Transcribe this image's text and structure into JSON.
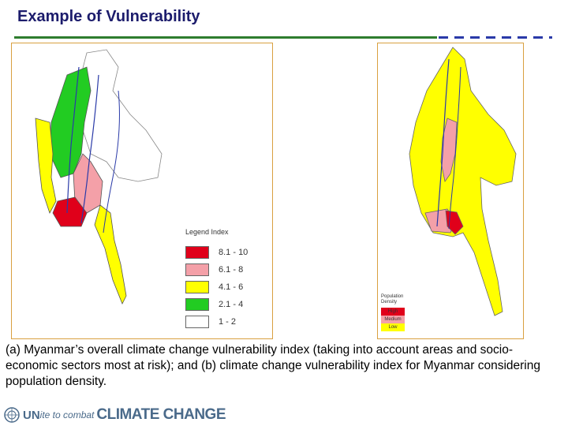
{
  "slide": {
    "title": "Example of Vulnerability",
    "caption": "(a) Myanmar’s overall climate change vulnerability index (taking into account areas and socio-economic sectors most at risk); and (b) climate change vulnerability index for Myanmar considering population density."
  },
  "map_a": {
    "legend_title": "Legend Index",
    "legend": [
      {
        "label": "8.1 - 10",
        "color": "#e0001a"
      },
      {
        "label": "6.1 - 8",
        "color": "#f4a0a8"
      },
      {
        "label": "4.1 - 6",
        "color": "#ffff00"
      },
      {
        "label": "2.1 - 4",
        "color": "#22cc22"
      },
      {
        "label": "1 - 2",
        "color": "#ffffff"
      }
    ]
  },
  "map_b": {
    "legend_title_1": "Population",
    "legend_title_2": "Density",
    "legend": [
      {
        "label": "High",
        "color": "#e0001a"
      },
      {
        "label": "Medium",
        "color": "#f4a0a8"
      },
      {
        "label": "Low",
        "color": "#ffff00"
      }
    ]
  },
  "footer": {
    "icon": "un-emblem-icon",
    "un": "UN",
    "ite": "ite to combat",
    "cc": "CLIMATE CHANGE"
  },
  "colors": {
    "title": "#1c1c6c",
    "rule": "#2e7d2e",
    "dash": "#2a3aa8",
    "panel_border": "#d9a040",
    "river": "#2a3aa8"
  }
}
